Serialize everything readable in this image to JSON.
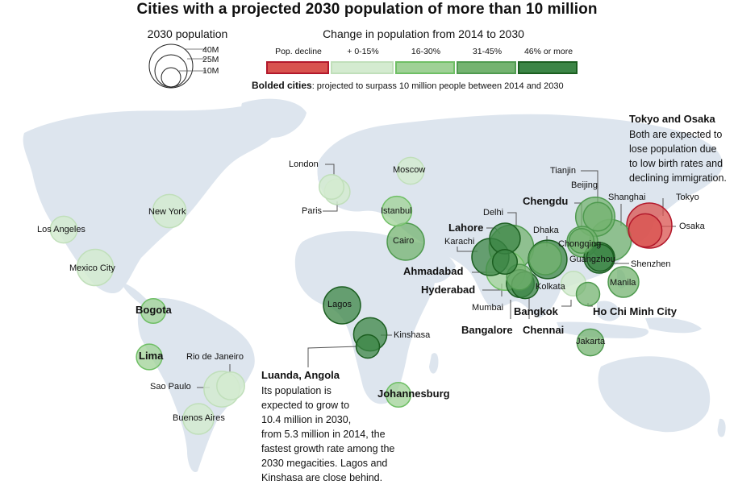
{
  "title": "Cities with a projected 2030 population of more than 10 million",
  "size_legend": {
    "title": "2030 population",
    "labels": [
      "40M",
      "25M",
      "10M"
    ],
    "values_millions": [
      40,
      25,
      10
    ]
  },
  "change_legend": {
    "title": "Change in population from 2014 to 2030",
    "categories": [
      {
        "label": "Pop. decline",
        "fill": "#d9534f",
        "stroke": "#b2182b"
      },
      {
        "label": "+ 0-15%",
        "fill": "#d4ebd0",
        "stroke": "#c0dfba"
      },
      {
        "label": "16-30%",
        "fill": "#9fd196",
        "stroke": "#6fbf65"
      },
      {
        "label": "31-45%",
        "fill": "#74b370",
        "stroke": "#4f9a4f"
      },
      {
        "label": "46% or more",
        "fill": "#3c8546",
        "stroke": "#1b5e20"
      }
    ]
  },
  "bolded_note": {
    "bold": "Bolded cities",
    "text": ": projected to surpass 10 million people between 2014 and 2030"
  },
  "map": {
    "land_color": "#dde5ee",
    "background": "#ffffff"
  },
  "cities": [
    {
      "name": "Los Angeles",
      "bold": false,
      "change": 1,
      "pop2030_millions": 13
    },
    {
      "name": "Mexico City",
      "bold": false,
      "change": 1,
      "pop2030_millions": 24
    },
    {
      "name": "New York",
      "bold": false,
      "change": 1,
      "pop2030_millions": 20
    },
    {
      "name": "Bogota",
      "bold": true,
      "change": 2,
      "pop2030_millions": 11
    },
    {
      "name": "Lima",
      "bold": true,
      "change": 2,
      "pop2030_millions": 12
    },
    {
      "name": "Rio de Janeiro",
      "bold": false,
      "change": 1,
      "pop2030_millions": 14
    },
    {
      "name": "Sao Paulo",
      "bold": false,
      "change": 1,
      "pop2030_millions": 23
    },
    {
      "name": "Buenos Aires",
      "bold": false,
      "change": 1,
      "pop2030_millions": 17
    },
    {
      "name": "London",
      "bold": false,
      "change": 1,
      "pop2030_millions": 11
    },
    {
      "name": "Paris",
      "bold": false,
      "change": 1,
      "pop2030_millions": 12
    },
    {
      "name": "Moscow",
      "bold": false,
      "change": 1,
      "pop2030_millions": 13
    },
    {
      "name": "Istanbul",
      "bold": false,
      "change": 2,
      "pop2030_millions": 16
    },
    {
      "name": "Cairo",
      "bold": false,
      "change": 3,
      "pop2030_millions": 25
    },
    {
      "name": "Lagos",
      "bold": false,
      "change": 4,
      "pop2030_millions": 25
    },
    {
      "name": "Kinshasa",
      "bold": false,
      "change": 4,
      "pop2030_millions": 20
    },
    {
      "name": "Luanda, Angola",
      "bold": true,
      "change": 4,
      "pop2030_millions": 10
    },
    {
      "name": "Johannesburg",
      "bold": true,
      "change": 2,
      "pop2030_millions": 11
    },
    {
      "name": "Lahore",
      "bold": true,
      "change": 4,
      "pop2030_millions": 17
    },
    {
      "name": "Karachi",
      "bold": false,
      "change": 4,
      "pop2030_millions": 25
    },
    {
      "name": "Delhi",
      "bold": false,
      "change": 3,
      "pop2030_millions": 36
    },
    {
      "name": "Ahmadabad",
      "bold": true,
      "change": 4,
      "pop2030_millions": 11
    },
    {
      "name": "Hyderabad",
      "bold": true,
      "change": 3,
      "pop2030_millions": 12
    },
    {
      "name": "Mumbai",
      "bold": false,
      "change": 2,
      "pop2030_millions": 28
    },
    {
      "name": "Bangalore",
      "bold": true,
      "change": 4,
      "pop2030_millions": 14
    },
    {
      "name": "Chennai",
      "bold": true,
      "change": 4,
      "pop2030_millions": 13
    },
    {
      "name": "Kolkata",
      "bold": false,
      "change": 3,
      "pop2030_millions": 19
    },
    {
      "name": "Dhaka",
      "bold": false,
      "change": 4,
      "pop2030_millions": 27
    },
    {
      "name": "Bangkok",
      "bold": true,
      "change": 1,
      "pop2030_millions": 11
    },
    {
      "name": "Ho Chi Minh City",
      "bold": true,
      "change": 3,
      "pop2030_millions": 10
    },
    {
      "name": "Chengdu",
      "bold": true,
      "change": 3,
      "pop2030_millions": 11
    },
    {
      "name": "Beijing",
      "bold": false,
      "change": 3,
      "pop2030_millions": 28
    },
    {
      "name": "Tianjin",
      "bold": false,
      "change": 3,
      "pop2030_millions": 15
    },
    {
      "name": "Shanghai",
      "bold": false,
      "change": 3,
      "pop2030_millions": 31
    },
    {
      "name": "Chongqing",
      "bold": false,
      "change": 3,
      "pop2030_millions": 17
    },
    {
      "name": "Guangzhou",
      "bold": false,
      "change": 4,
      "pop2030_millions": 17
    },
    {
      "name": "Shenzhen",
      "bold": false,
      "change": 4,
      "pop2030_millions": 13
    },
    {
      "name": "Manila",
      "bold": false,
      "change": 3,
      "pop2030_millions": 17
    },
    {
      "name": "Jakarta",
      "bold": false,
      "change": 3,
      "pop2030_millions": 13
    },
    {
      "name": "Tokyo",
      "bold": false,
      "change": 0,
      "pop2030_millions": 37
    },
    {
      "name": "Osaka",
      "bold": false,
      "change": 0,
      "pop2030_millions": 20
    }
  ],
  "annotations": {
    "tokyo_osaka": {
      "title": "Tokyo and Osaka",
      "lines": [
        "Both are expected to",
        "lose population due",
        "to low birth rates and",
        "declining immigration."
      ]
    },
    "luanda": {
      "title": "Luanda, Angola",
      "lines": [
        "Its population is",
        "expected to grow to",
        "10.4 million in 2030,",
        "from 5.3 million in 2014, the",
        "fastest growth rate among the",
        "2030 megacities. Lagos and",
        "Kinshasa are close behind."
      ]
    }
  }
}
